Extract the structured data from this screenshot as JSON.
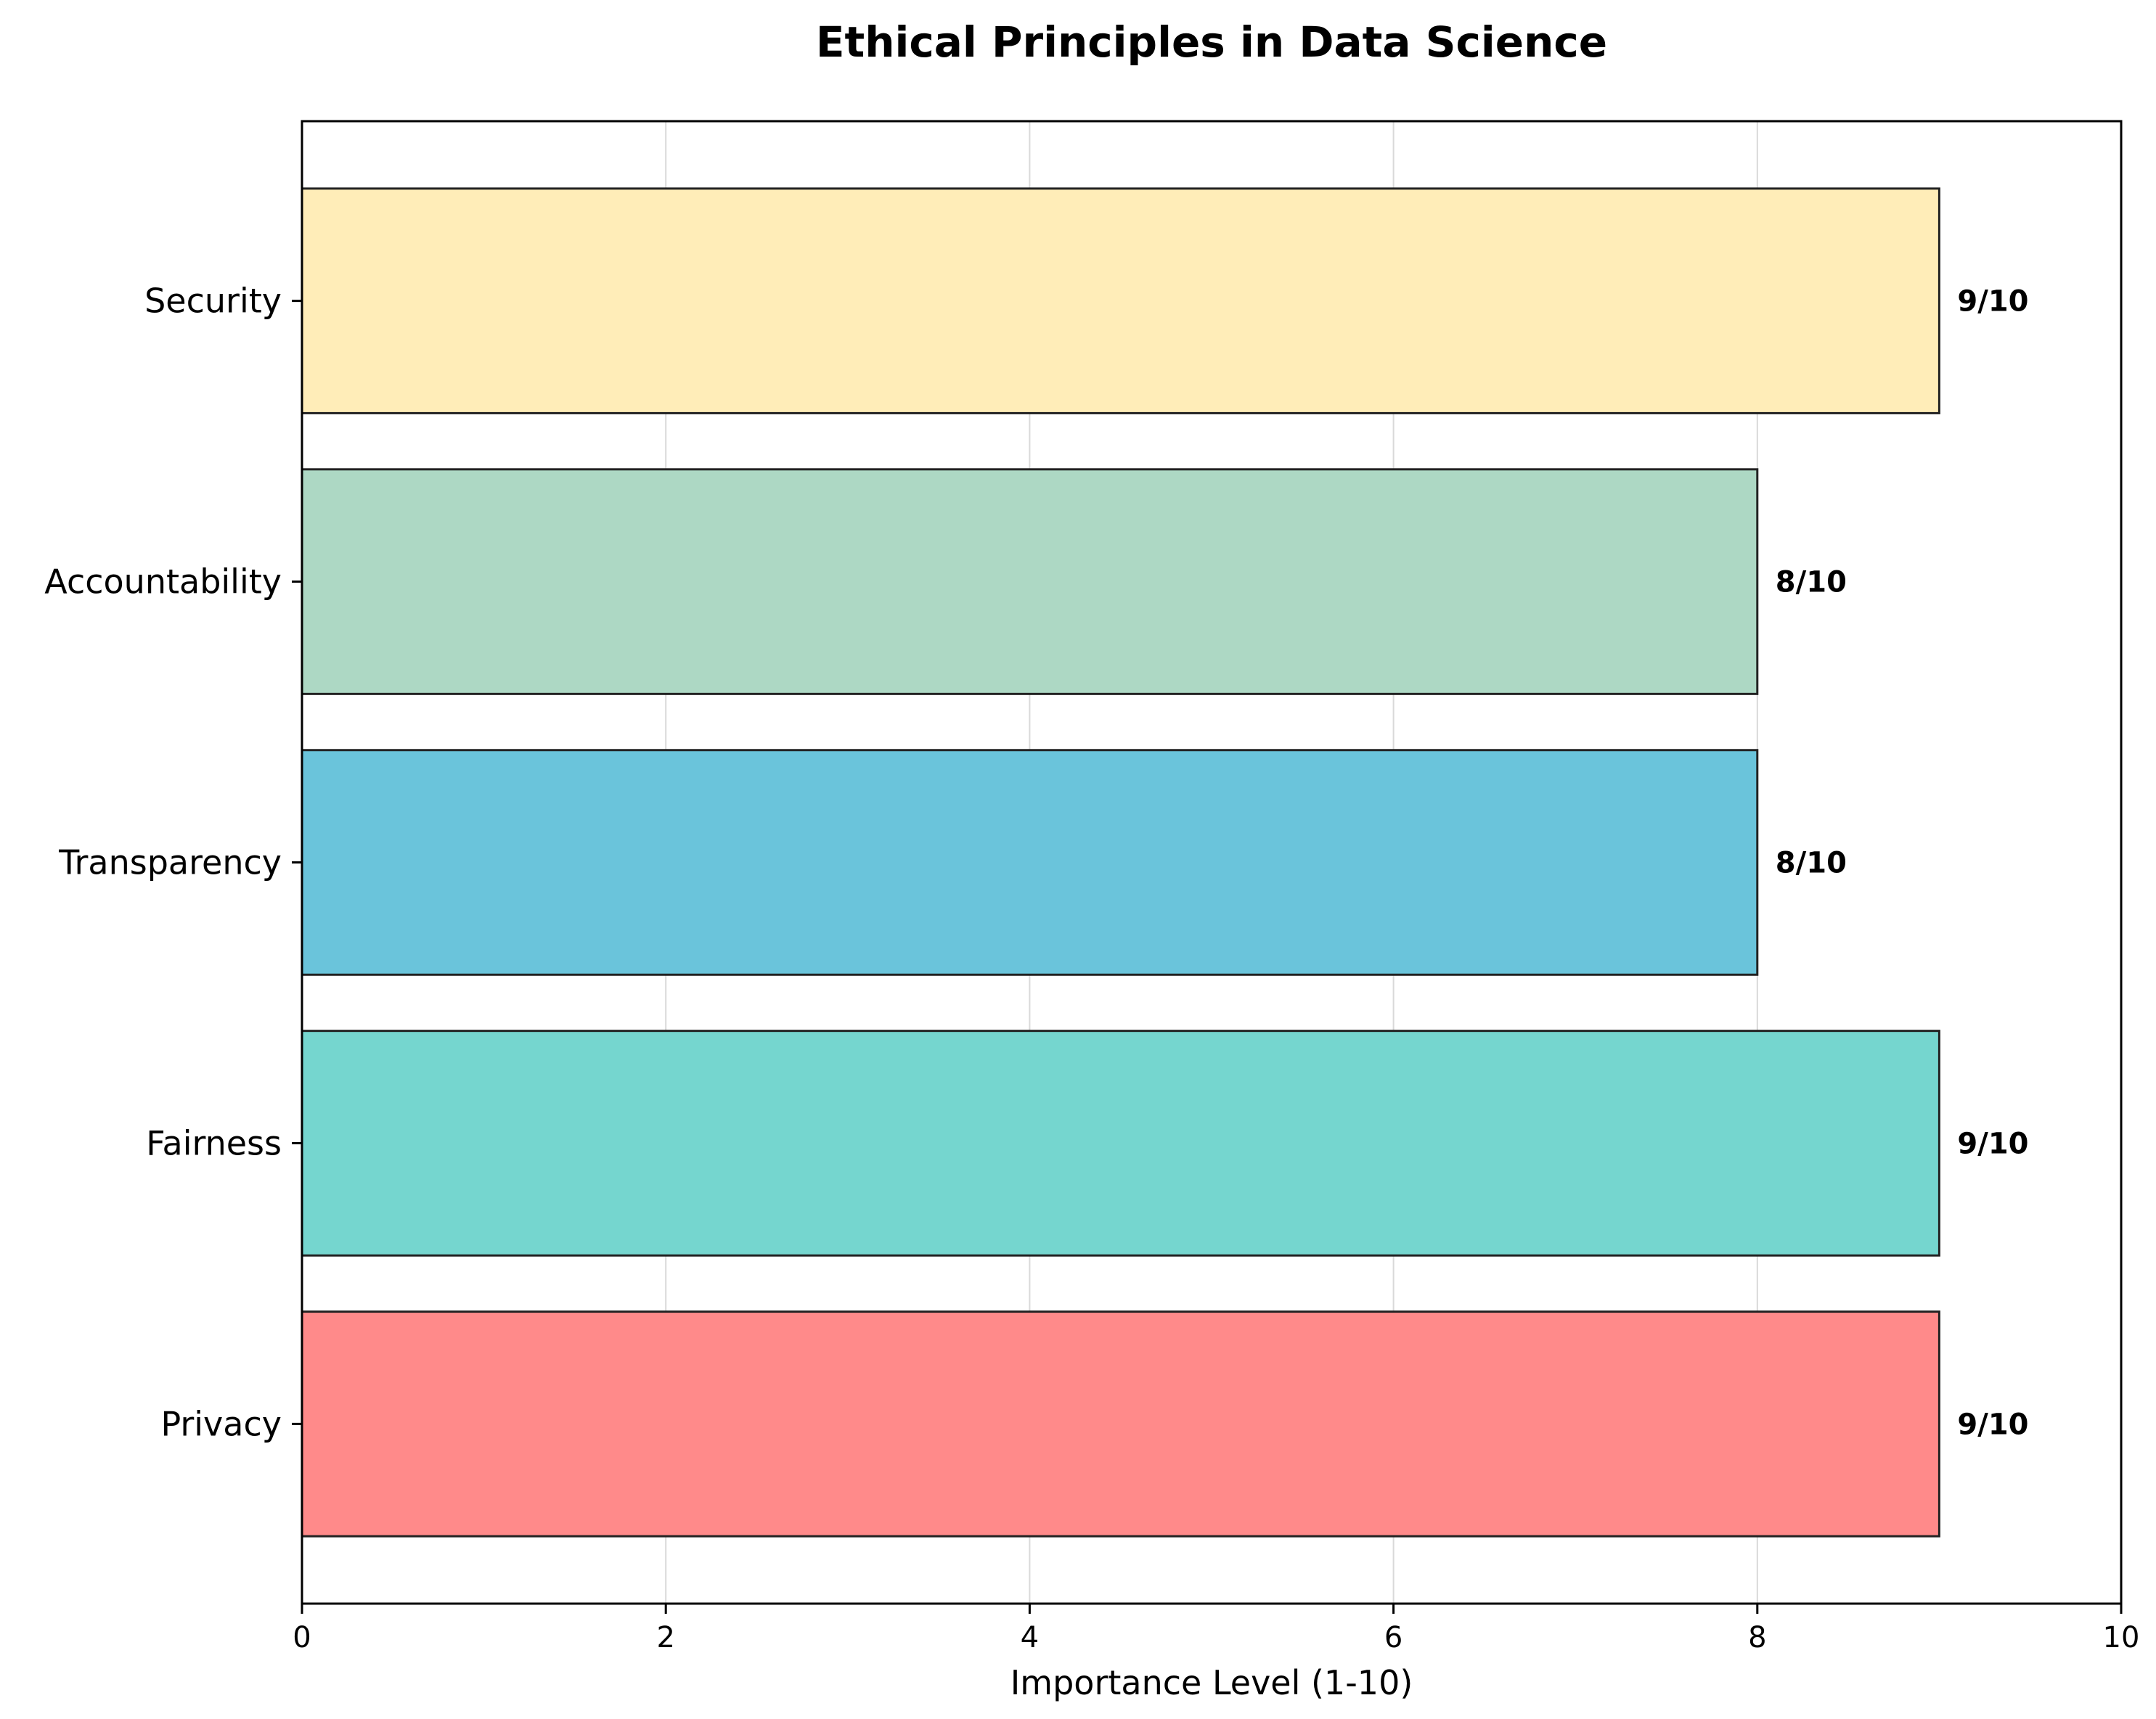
{
  "chart_data": {
    "type": "bar",
    "orientation": "horizontal",
    "title": "Ethical Principles in Data Science",
    "xlabel": "Importance Level (1-10)",
    "ylabel": "",
    "xlim": [
      0,
      10
    ],
    "xticks": [
      0,
      2,
      4,
      6,
      8,
      10
    ],
    "grid": "vertical, light gray",
    "categories": [
      "Privacy",
      "Fairness",
      "Transparency",
      "Accountability",
      "Security"
    ],
    "values": [
      9,
      9,
      8,
      8,
      9
    ],
    "data_labels": [
      "9/10",
      "9/10",
      "8/10",
      "8/10",
      "9/10"
    ],
    "colors": [
      "#FF8A8A",
      "#75D6CF",
      "#6AC4DB",
      "#ADD8C4",
      "#FFEDB8"
    ],
    "edge_color": "#222222"
  }
}
